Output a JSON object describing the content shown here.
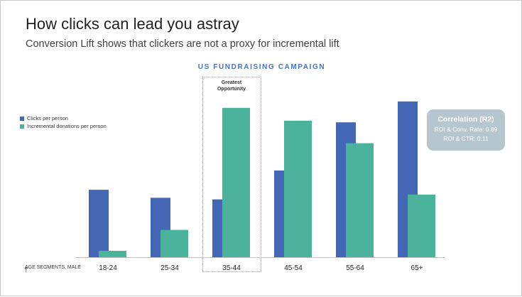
{
  "header": {
    "title": "How clicks can lead you astray",
    "subtitle": "Conversion Lift shows that clickers are not a proxy for incremental lift"
  },
  "highlight": {
    "label_line1": "Greatest",
    "label_line2": "Opportunity"
  },
  "callout": {
    "title": "Correlation (R2)",
    "line1": "ROI & Conv. Rate: 0.89",
    "line2": "ROI & CTR: 0.11"
  },
  "x_caption": "AGE SEGMENTS, MALE",
  "colors": {
    "clicks": "#4367b4",
    "donations": "#4bb39b"
  },
  "chart_data": {
    "type": "bar",
    "title": "US FUNDRAISING CAMPAIGN",
    "categories": [
      "18-24",
      "25-34",
      "35-44",
      "45-54",
      "55-64",
      "65+"
    ],
    "series": [
      {
        "name": "Clicks per person",
        "values": [
          42,
          37,
          36,
          54,
          84,
          97
        ]
      },
      {
        "name": "Incremental donations per person",
        "values": [
          4,
          17,
          93,
          85,
          71,
          39
        ]
      }
    ],
    "ylim": [
      0,
      100
    ],
    "xlabel": "AGE SEGMENTS, MALE",
    "ylabel": "",
    "legend": "left",
    "grid": false,
    "highlight_category": "35-44"
  }
}
